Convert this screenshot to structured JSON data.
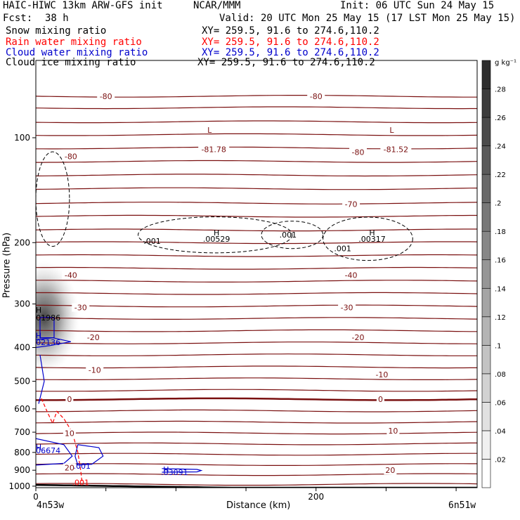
{
  "header": {
    "title": "HAIC-HIWC 13km ARW-GFS init",
    "center": "NCAR/MMM",
    "init": "Init: 06 UTC Sun 24 May 15",
    "fcst_label": "Fcst:",
    "fcst_value": "38 h",
    "valid": "Valid: 20 UTC Mon 25 May 15 (17 LST Mon 25 May 15)"
  },
  "fields": [
    {
      "label": "Snow mixing ratio",
      "xy": "XY= 259.5, 91.6 to 274.6,110.2",
      "color": "#000000"
    },
    {
      "label": "Rain water mixing ratio",
      "xy": "XY= 259.5, 91.6 to 274.6,110.2",
      "color": "#ff0000"
    },
    {
      "label": "Cloud water mixing ratio",
      "xy": "XY= 259.5, 91.6 to 274.6,110.2",
      "color": "#0000cc"
    },
    {
      "label": "Cloud ice mixing ratio",
      "xy": "XY= 259.5, 91.6 to 274.6,110.2",
      "color": "#000000"
    }
  ],
  "axes": {
    "ylabel": "Pressure (hPa)",
    "xlabel": "Distance (km)",
    "left_end": "4n53w",
    "right_end": "6n51w",
    "colorbar_unit": "g kg⁻¹"
  },
  "chart_data": {
    "type": "contour",
    "y_axis": {
      "scale": "log",
      "range": [
        1010,
        60
      ],
      "ticks": [
        100,
        200,
        300,
        400,
        500,
        600,
        700,
        800,
        900,
        1000
      ]
    },
    "x_axis": {
      "range": [
        0,
        315
      ],
      "ticks": [
        0,
        200
      ],
      "minor_ticks": [
        0,
        50,
        100,
        150,
        200,
        250,
        300
      ]
    },
    "colorbar": {
      "ticks": [
        ".02",
        ".04",
        ".06",
        ".08",
        ".1",
        ".12",
        ".14",
        ".16",
        ".18",
        ".2",
        ".22",
        ".24",
        ".26",
        ".28"
      ]
    },
    "temperature_contours": {
      "color": "#7a1010",
      "labels": [
        {
          "text": "-80",
          "x": 50,
          "p": 76
        },
        {
          "text": "-80",
          "x": 200,
          "p": 76
        },
        {
          "text": "-80",
          "x": 230,
          "p": 110
        },
        {
          "text": "-80",
          "x": 25,
          "p": 113
        },
        {
          "text": "-70",
          "x": 225,
          "p": 155
        },
        {
          "text": "-40",
          "x": 25,
          "p": 248
        },
        {
          "text": "-40",
          "x": 225,
          "p": 248
        },
        {
          "text": "-30",
          "x": 32,
          "p": 307
        },
        {
          "text": "-30",
          "x": 222,
          "p": 307
        },
        {
          "text": "-20",
          "x": 41,
          "p": 374
        },
        {
          "text": "-20",
          "x": 230,
          "p": 374
        },
        {
          "text": "-10",
          "x": 42,
          "p": 464
        },
        {
          "text": "-10",
          "x": 247,
          "p": 478
        },
        {
          "text": "0",
          "x": 24,
          "p": 563
        },
        {
          "text": "0",
          "x": 246,
          "p": 563
        },
        {
          "text": "10",
          "x": 24,
          "p": 705
        },
        {
          "text": "10",
          "x": 255,
          "p": 693
        },
        {
          "text": "20",
          "x": 24,
          "p": 885
        },
        {
          "text": "20",
          "x": 253,
          "p": 900
        }
      ],
      "extrema": [
        {
          "type": "L",
          "x": 124,
          "p": 103,
          "value": "-81.78"
        },
        {
          "type": "L",
          "x": 254,
          "p": 103,
          "value": "-81.52"
        }
      ]
    },
    "cloud_ice": {
      "color": "#000000",
      "labels": [
        {
          "text": ".001",
          "x": 83,
          "p": 198
        },
        {
          "text": ".001",
          "x": 180,
          "p": 190
        },
        {
          "text": ".001",
          "x": 219,
          "p": 208
        }
      ],
      "extrema": [
        {
          "type": "H",
          "x": 129,
          "p": 195,
          "value": ".00529"
        },
        {
          "type": "H",
          "x": 240,
          "p": 195,
          "value": ".00317"
        }
      ]
    },
    "snow": {
      "color": "#000000",
      "extrema": [
        {
          "type": "H",
          "x": 1,
          "p": 328,
          "value": ".01986"
        }
      ]
    },
    "cloud_water": {
      "color": "#0000cc",
      "labels": [
        {
          "text": ".001",
          "x": 33,
          "p": 875
        }
      ],
      "extrema": [
        {
          "type": "H",
          "x": 1,
          "p": 386,
          "value": ".02136"
        },
        {
          "type": "H",
          "x": 1,
          "p": 790,
          "value": ".06674"
        },
        {
          "type": "H",
          "x": 92,
          "p": 912,
          "value": ".03091"
        }
      ]
    },
    "rain_water": {
      "color": "#ff0000",
      "labels": [
        {
          "text": ".001",
          "x": 32,
          "p": 975
        }
      ]
    }
  }
}
